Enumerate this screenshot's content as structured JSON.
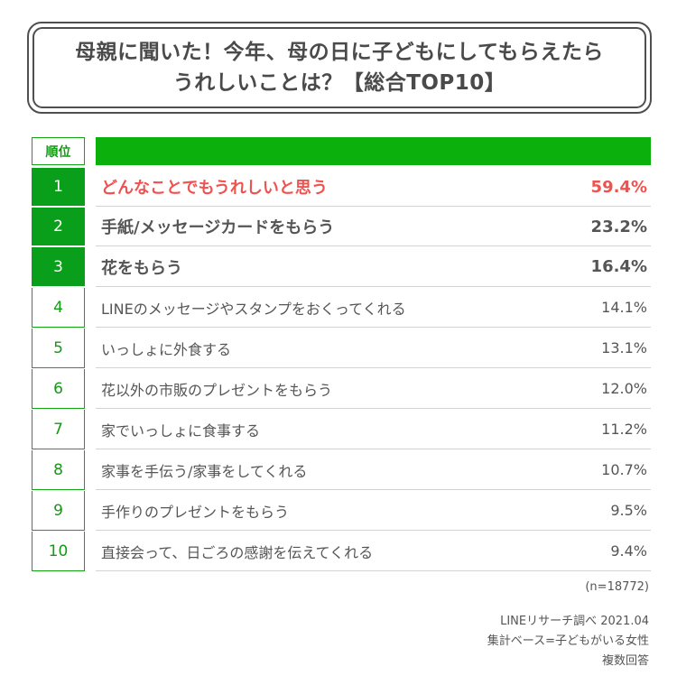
{
  "title": {
    "line1": "母親に聞いた！今年、母の日に子どもにしてもらえたら",
    "line2": "うれしいことは？【総合TOP10】"
  },
  "header": {
    "rank_label": "順位"
  },
  "colors": {
    "accent_green": "#0cb00c",
    "rank_green": "#0a9f1a",
    "highlight_red": "#ef5350"
  },
  "chart_data": {
    "type": "table",
    "columns": [
      "順位",
      "",
      ""
    ],
    "rows": [
      {
        "rank": "1",
        "label": "どんなことでもうれしいと思う",
        "value": "59.4%"
      },
      {
        "rank": "2",
        "label": "手紙/メッセージカードをもらう",
        "value": "23.2%"
      },
      {
        "rank": "3",
        "label": "花をもらう",
        "value": "16.4%"
      },
      {
        "rank": "4",
        "label": "LINEのメッセージやスタンプをおくってくれる",
        "value": "14.1%"
      },
      {
        "rank": "5",
        "label": "いっしょに外食する",
        "value": "13.1%"
      },
      {
        "rank": "6",
        "label": "花以外の市販のプレゼントをもらう",
        "value": "12.0%"
      },
      {
        "rank": "7",
        "label": "家でいっしょに食事する",
        "value": "11.2%"
      },
      {
        "rank": "8",
        "label": "家事を手伝う/家事をしてくれる",
        "value": "10.7%"
      },
      {
        "rank": "9",
        "label": "手作りのプレゼントをもらう",
        "value": "9.5%"
      },
      {
        "rank": "10",
        "label": "直接会って、日ごろの感謝を伝えてくれる",
        "value": "9.4%"
      }
    ]
  },
  "notes": {
    "sample": "(n=18772)",
    "source": "LINEリサーチ調べ 2021.04",
    "base": "集計ベース=子どもがいる女性",
    "answer_type": "複数回答"
  }
}
